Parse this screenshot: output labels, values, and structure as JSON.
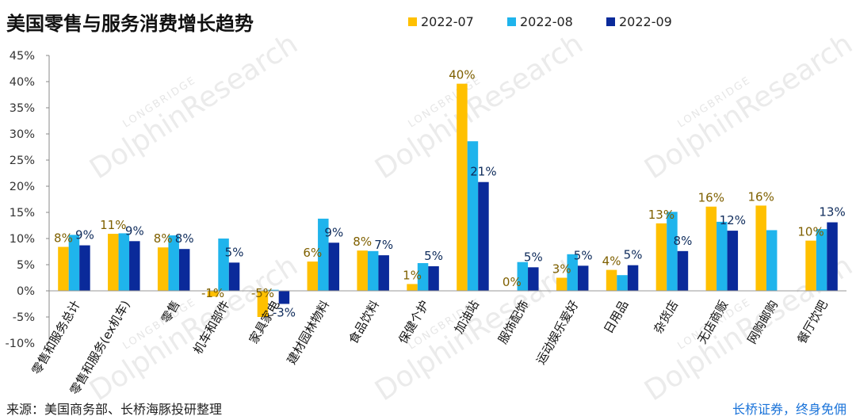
{
  "colors": {
    "series": [
      "#FFC000",
      "#1FB4EC",
      "#0A2A9A"
    ],
    "label": [
      "#7F6000",
      "#0E2B5B",
      "#0E2B5B"
    ]
  },
  "watermark": {
    "sub": "LONGBRIDGE",
    "main": "DolphinResearch"
  },
  "footer": {
    "source": "来源：美国商务部、长桥海豚投研整理",
    "brand": "长桥证券，终身免佣"
  },
  "chart_data": {
    "type": "bar",
    "title": "美国零售与服务消费增长趋势",
    "categories": [
      "零售和服务总计",
      "零售和服务(ex机车)",
      "零售",
      "机车和部件",
      "家具家电",
      "建材园林物料",
      "食品饮料",
      "保健个护",
      "加油站",
      "服饰配饰",
      "运动娱乐爱好",
      "日用品",
      "杂货店",
      "无店商贩",
      "网购邮购",
      "餐厅饮吧"
    ],
    "series": [
      {
        "name": "2022-07",
        "values": [
          8.4,
          10.9,
          8.3,
          -1.1,
          -5.0,
          5.6,
          7.7,
          1.3,
          39.6,
          0.0,
          2.5,
          4.0,
          12.9,
          16.1,
          16.3,
          9.6
        ]
      },
      {
        "name": "2022-08",
        "values": [
          10.7,
          11.0,
          10.6,
          10.0,
          0.2,
          13.8,
          7.6,
          5.3,
          28.6,
          5.5,
          7.0,
          3.0,
          15.1,
          13.2,
          11.6,
          11.8
        ]
      },
      {
        "name": "2022-09",
        "values": [
          8.7,
          9.5,
          8.0,
          5.4,
          -2.5,
          9.2,
          6.8,
          4.7,
          20.8,
          4.5,
          4.8,
          4.9,
          7.6,
          11.5,
          null,
          13.1
        ]
      }
    ],
    "data_labels": [
      [
        "8%",
        "",
        "9%"
      ],
      [
        "11%",
        "",
        "9%"
      ],
      [
        "8%",
        "",
        "8%"
      ],
      [
        "-1%",
        "",
        "5%"
      ],
      [
        "-5%",
        "",
        "-3%"
      ],
      [
        "6%",
        "",
        "9%"
      ],
      [
        "8%",
        "",
        "7%"
      ],
      [
        "1%",
        "",
        "5%"
      ],
      [
        "40%",
        "",
        "21%"
      ],
      [
        "0%",
        "",
        "5%"
      ],
      [
        "3%",
        "",
        "5%"
      ],
      [
        "4%",
        "",
        "5%"
      ],
      [
        "13%",
        "",
        "8%"
      ],
      [
        "16%",
        "",
        "12%"
      ],
      [
        "16%",
        "",
        ""
      ],
      [
        "10%",
        "",
        "13%"
      ]
    ],
    "yticks": [
      "45%",
      "40%",
      "35%",
      "30%",
      "25%",
      "20%",
      "15%",
      "10%",
      "5%",
      "0%",
      "-5%",
      "-10%"
    ],
    "ylim": [
      -10,
      45
    ],
    "legend": [
      "2022-07",
      "2022-08",
      "2022-09"
    ],
    "legend_position": "top-right"
  }
}
